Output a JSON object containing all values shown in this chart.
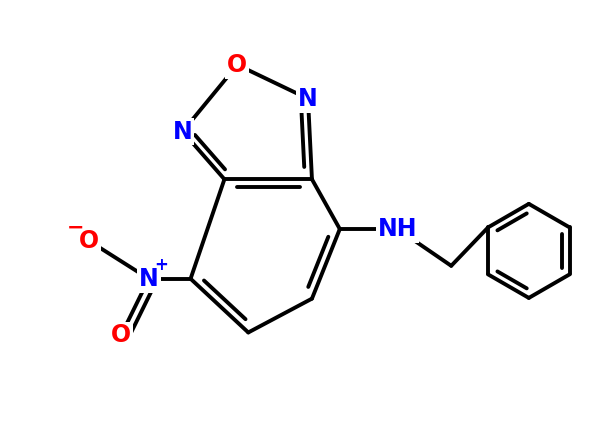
{
  "background_color": "#ffffff",
  "bond_color": "#000000",
  "bond_width": 2.8,
  "atom_colors": {
    "O": "#ff0000",
    "N": "#0000ff",
    "C": "#000000"
  },
  "font_size_atoms": 17,
  "font_size_charge": 12
}
